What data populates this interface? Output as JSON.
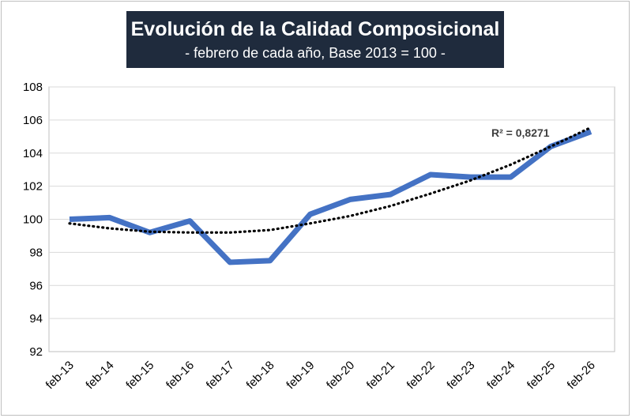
{
  "colors": {
    "series": "#4472c4",
    "trend": "#000000",
    "title_bg": "#1f2b3d",
    "grid": "#d9d9d9"
  },
  "chart_data": {
    "type": "line",
    "title": "Evolución de la Calidad Composicional",
    "subtitle": "- febrero de cada año, Base 2013 = 100 -",
    "categories": [
      "feb-13",
      "feb-14",
      "feb-15",
      "feb-16",
      "feb-17",
      "feb-18",
      "feb-19",
      "feb-20",
      "feb-21",
      "feb-22",
      "feb-23",
      "feb-24",
      "feb-25",
      "feb-26"
    ],
    "series": [
      {
        "values": [
          100.0,
          100.1,
          99.2,
          99.9,
          97.4,
          97.5,
          100.3,
          101.2,
          101.5,
          102.7,
          102.55,
          102.55,
          104.4,
          105.3
        ]
      }
    ],
    "trendline": {
      "type": "polynomial",
      "label": "R² = 0,8271",
      "values": [
        99.75,
        99.45,
        99.25,
        99.2,
        99.2,
        99.35,
        99.75,
        100.2,
        100.8,
        101.55,
        102.35,
        103.3,
        104.4,
        105.55
      ]
    },
    "ylim": [
      92,
      108
    ],
    "yticks": [
      92,
      94,
      96,
      98,
      100,
      102,
      104,
      106,
      108
    ],
    "grid": true,
    "legend": "none"
  }
}
